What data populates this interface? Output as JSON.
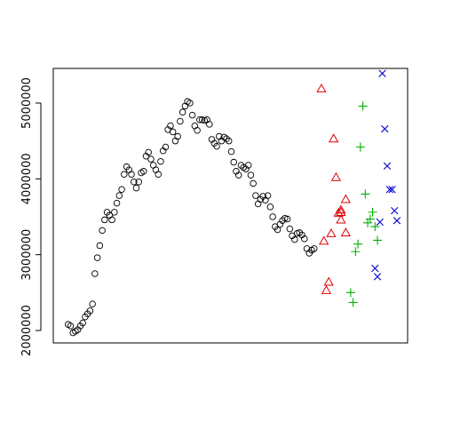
{
  "chart_data": {
    "type": "scatter",
    "title": "",
    "xlabel": "",
    "ylabel": "",
    "ylim": [
      1750000,
      5500000
    ],
    "xlim": [
      0,
      140
    ],
    "y_ticks": [
      2000000,
      3000000,
      4000000,
      5000000
    ],
    "y_tick_labels": [
      "2000000",
      "3000000",
      "4000000",
      "5000000"
    ],
    "y_tick_label_rotation": "vertical",
    "x_ticks_shown": false,
    "grid": false,
    "legend": "none",
    "series": [
      {
        "marker": "circle",
        "color": "#000000",
        "x": [
          5,
          6,
          7,
          8,
          9,
          10,
          11,
          12,
          13,
          14,
          15,
          16,
          17,
          18,
          19,
          20,
          21,
          22,
          23,
          24,
          25,
          26,
          27,
          28,
          29,
          30,
          31,
          32,
          33,
          34,
          35,
          36,
          37,
          38,
          39,
          40,
          41,
          42,
          43,
          44,
          45,
          46,
          47,
          48,
          49,
          50,
          51,
          52,
          53,
          54,
          55,
          56,
          57,
          58,
          59,
          60,
          61,
          62,
          63,
          64,
          65,
          66,
          67,
          68,
          69,
          70,
          71,
          72,
          73,
          74,
          75,
          76,
          77,
          78,
          79,
          80,
          81,
          82,
          83,
          84,
          85,
          86,
          87,
          88,
          89,
          90,
          91,
          92,
          93,
          94,
          95,
          96,
          97,
          98,
          99,
          100,
          101,
          102,
          103,
          104,
          105,
          106
        ],
        "y": [
          2080000,
          2060000,
          1970000,
          1990000,
          2010000,
          2060000,
          2100000,
          2180000,
          2220000,
          2260000,
          2350000,
          2750000,
          2960000,
          3120000,
          3320000,
          3460000,
          3560000,
          3520000,
          3460000,
          3560000,
          3680000,
          3780000,
          3860000,
          4060000,
          4160000,
          4120000,
          4060000,
          3960000,
          3880000,
          3960000,
          4080000,
          4100000,
          4300000,
          4350000,
          4260000,
          4180000,
          4120000,
          4060000,
          4230000,
          4370000,
          4420000,
          4650000,
          4700000,
          4620000,
          4500000,
          4560000,
          4760000,
          4880000,
          4960000,
          5020000,
          5000000,
          4840000,
          4700000,
          4640000,
          4780000,
          4780000,
          4770000,
          4780000,
          4720000,
          4520000,
          4470000,
          4430000,
          4560000,
          4500000,
          4550000,
          4530000,
          4500000,
          4360000,
          4220000,
          4100000,
          4050000,
          4180000,
          4150000,
          4130000,
          4180000,
          4050000,
          3940000,
          3780000,
          3670000,
          3730000,
          3770000,
          3720000,
          3780000,
          3630000,
          3500000,
          3370000,
          3330000,
          3400000,
          3450000,
          3480000,
          3470000,
          3340000,
          3250000,
          3200000,
          3280000,
          3290000,
          3260000,
          3210000,
          3080000,
          3020000,
          3060000,
          3080000
        ]
      },
      {
        "marker": "triangle",
        "color": "#df0000",
        "x": [
          109,
          110,
          111,
          112,
          113,
          114,
          115,
          116,
          117,
          117,
          117,
          119,
          119
        ],
        "y": [
          5190000,
          3180000,
          2530000,
          2640000,
          3280000,
          4530000,
          4020000,
          3550000,
          3460000,
          3560000,
          3590000,
          3730000,
          3290000
        ],
        "plot_order": [
          0,
          1,
          2,
          3,
          4,
          5,
          6,
          7,
          8,
          9,
          10,
          11,
          12
        ]
      },
      {
        "marker": "plus",
        "color": "#00b000",
        "x": [
          121,
          122,
          123,
          124,
          125,
          126,
          127,
          128,
          129,
          130,
          131,
          132
        ],
        "y": [
          2500000,
          2370000,
          3040000,
          3140000,
          4420000,
          4960000,
          3800000,
          3420000,
          3470000,
          3560000,
          3370000,
          3190000
        ]
      },
      {
        "marker": "x",
        "color": "#0000cc",
        "x": [
          131,
          132,
          133,
          134,
          135,
          136,
          137,
          138,
          139,
          140
        ],
        "y": [
          2820000,
          2710000,
          3430000,
          5390000,
          4660000,
          4170000,
          3860000,
          3860000,
          3580000,
          3450000
        ]
      }
    ]
  }
}
